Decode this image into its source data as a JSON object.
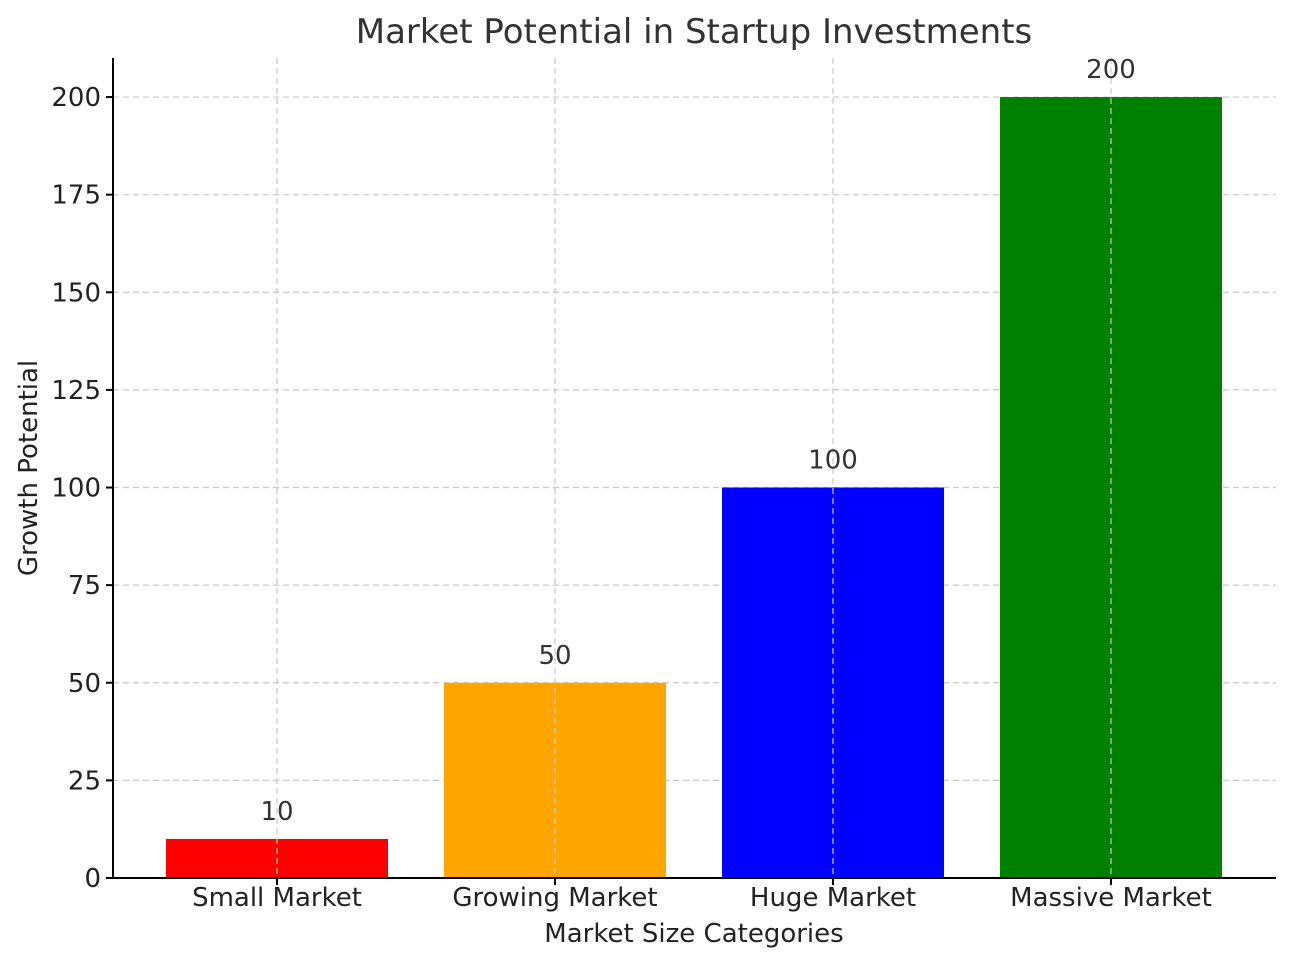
{
  "chart_data": {
    "type": "bar",
    "title": "Market Potential in Startup Investments",
    "xlabel": "Market Size Categories",
    "ylabel": "Growth Potential",
    "categories": [
      "Small Market",
      "Growing Market",
      "Huge Market",
      "Massive Market"
    ],
    "values": [
      10,
      50,
      100,
      200
    ],
    "value_labels": [
      "10",
      "50",
      "100",
      "200"
    ],
    "colors": [
      "#ff0000",
      "#ffa500",
      "#0000ff",
      "#008000"
    ],
    "ylim": [
      0,
      210
    ],
    "yticks": [
      0,
      25,
      50,
      75,
      100,
      125,
      150,
      175,
      200
    ],
    "ytick_labels": [
      "0",
      "25",
      "50",
      "75",
      "100",
      "125",
      "150",
      "175",
      "200"
    ],
    "grid": true
  }
}
